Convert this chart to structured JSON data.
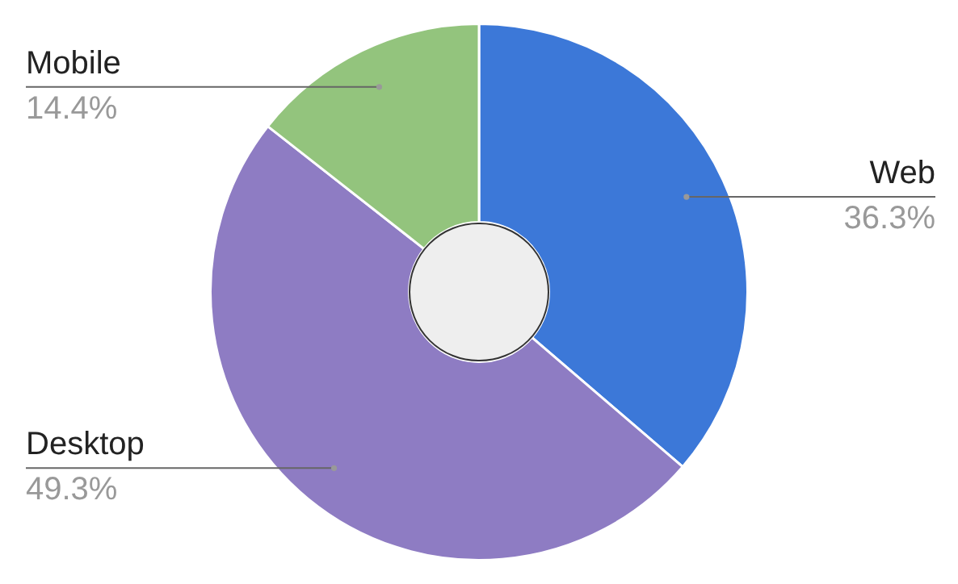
{
  "chart_data": {
    "type": "donut",
    "categories": [
      "Web",
      "Desktop",
      "Mobile"
    ],
    "values": [
      36.3,
      49.3,
      14.4
    ],
    "value_labels": [
      "36.3%",
      "49.3%",
      "14.4%"
    ],
    "colors": [
      "#3c78d8",
      "#8e7cc3",
      "#93c47d"
    ]
  }
}
